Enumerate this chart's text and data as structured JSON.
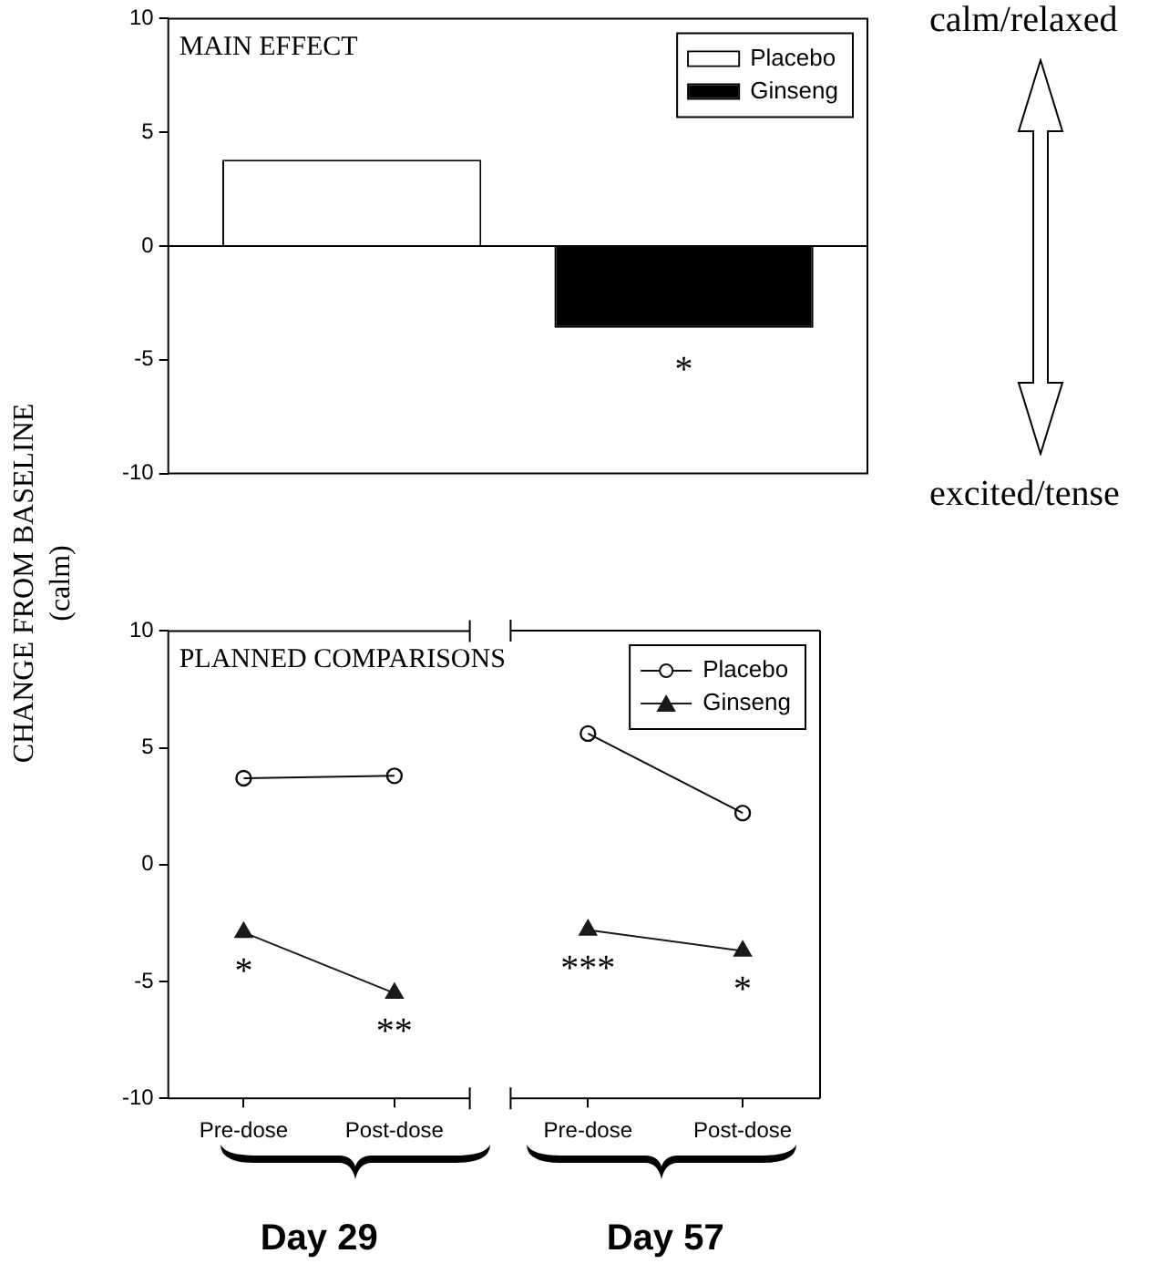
{
  "chart_data": [
    {
      "type": "bar",
      "title": "MAIN EFFECT",
      "ylabel": "CHANGE FROM BASELINE (calm)",
      "categories": [
        null
      ],
      "series": [
        {
          "name": "Placebo",
          "color": "#ffffff",
          "values": [
            3.8
          ]
        },
        {
          "name": "Ginseng",
          "color": "#000000",
          "values": [
            -3.6
          ]
        }
      ],
      "ylim": [
        -10,
        10
      ],
      "yticks": [
        -10,
        -5,
        0,
        5,
        10
      ],
      "legend": "top right",
      "tick_labels": "y",
      "annotations": [
        {
          "text": "*",
          "y": -3.6
        },
        "calm/relaxed",
        "excited/tense"
      ]
    },
    {
      "type": "line",
      "title": "PLANNED COMPARISONS",
      "xlabel": "Day 29",
      "categories": [
        "Pre-dose",
        "Post-dose"
      ],
      "series": [
        {
          "color": "#0d0d0d",
          "marker": "circle",
          "values": [
            3.7,
            3.8
          ]
        },
        {
          "color": "#1a1a1a",
          "marker": "triangle",
          "values": [
            -2.9,
            -5.5
          ]
        }
      ],
      "ylim": [
        -10,
        10
      ],
      "yticks": [
        -10,
        -5,
        0,
        5,
        10
      ],
      "annotations": [
        {
          "text": "*",
          "x": "Pre-dose",
          "y": -2.9
        },
        {
          "text": "**",
          "x": "Post-dose",
          "y": -5.5
        }
      ]
    },
    {
      "type": "line",
      "xlabel": "Day 57",
      "categories": [
        "Pre-dose",
        "Post-dose"
      ],
      "series": [
        {
          "name": "Placebo",
          "color": "#0d0d0d",
          "marker": "circle",
          "values": [
            5.6,
            2.2
          ]
        },
        {
          "name": "Ginseng",
          "color": "#1a1a1a",
          "marker": "triangle",
          "values": [
            -2.8,
            -3.7
          ]
        }
      ],
      "ylim": [
        -10,
        10
      ],
      "yticks": [
        -10,
        -5,
        0,
        5,
        10
      ],
      "tick_labels": "x",
      "legend": "top right",
      "annotations": [
        {
          "text": "***",
          "x": "Pre-dose",
          "y": -2.8
        },
        {
          "text": "*",
          "x": "Post-dose",
          "y": -3.7
        }
      ]
    }
  ]
}
